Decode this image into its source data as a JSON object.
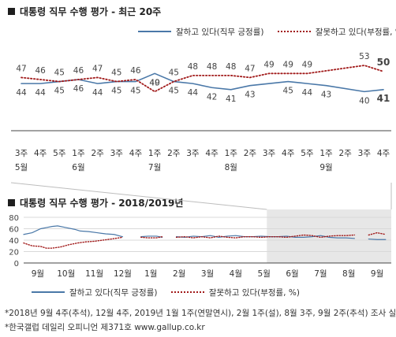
{
  "top": {
    "title": "대통령 직무 수행 평가 - 최근 20주",
    "legend": [
      {
        "label": "잘하고 있다(직무 긍정률)",
        "style": "solid",
        "color": "#4a78a8"
      },
      {
        "label": "잘못하고 있다(부정률, %)",
        "style": "dotted",
        "color": "#a11a1a"
      }
    ]
  },
  "bottom": {
    "title": "대통령 직무 수행 평가 - 2018/2019년",
    "legend": [
      {
        "label": "잘하고 있다(직무 긍정률)",
        "style": "solid",
        "color": "#4a78a8"
      },
      {
        "label": "잘못하고 있다(부정률, %)",
        "style": "dotted",
        "color": "#a11a1a"
      }
    ]
  },
  "footnotes": [
    "*2018년 9월 4주(추석), 12월 4주, 2019년 1월 1주(연말연시), 2월 1주(설), 8월 3주, 9월 2주(추석) 조사 실",
    "*한국갤럽 데일리 오피니언 제371호 www.gallup.co.kr"
  ],
  "chart_data": [
    {
      "type": "line",
      "title": "대통령 직무 수행 평가 - 최근 20주",
      "x_week_labels": [
        "3주",
        "4주",
        "5주",
        "1주",
        "2주",
        "3주",
        "4주",
        "1주",
        "2주",
        "3주",
        "4주",
        "1주",
        "2주",
        "3주",
        "4주",
        "5주",
        "1주",
        "2주",
        "3주",
        "4주"
      ],
      "x_month_labels": [
        {
          "label": "5월",
          "index": 0
        },
        {
          "label": "6월",
          "index": 3
        },
        {
          "label": "7월",
          "index": 7
        },
        {
          "label": "8월",
          "index": 11
        },
        {
          "label": "9월",
          "index": 16
        }
      ],
      "series": [
        {
          "name": "잘하고 있다(직무 긍정률)",
          "color": "#4a78a8",
          "style": "solid",
          "values": [
            44,
            44,
            45,
            46,
            44,
            45,
            45,
            49,
            45,
            44,
            42,
            41,
            43,
            null,
            45,
            44,
            43,
            null,
            40,
            41
          ]
        },
        {
          "name": "잘못하고 있다(부정률, %)",
          "color": "#a11a1a",
          "style": "dotted",
          "values": [
            47,
            46,
            45,
            46,
            47,
            45,
            46,
            40,
            45,
            48,
            48,
            48,
            47,
            49,
            49,
            49,
            null,
            null,
            53,
            50
          ]
        }
      ],
      "ylim": [
        30,
        62
      ]
    },
    {
      "type": "line",
      "title": "대통령 직무 수행 평가 - 2018/2019년",
      "ylim": [
        0,
        80
      ],
      "yticks": [
        0,
        20,
        40,
        60,
        80
      ],
      "x_month_labels": [
        "9월",
        "10월",
        "11월",
        "12월",
        "1월",
        "2월",
        "3월",
        "4월",
        "5월",
        "6월",
        "7월",
        "8월",
        "9월"
      ],
      "x_range": [
        0,
        13
      ],
      "highlight_range": [
        8.6,
        13
      ],
      "series": [
        {
          "name": "잘하고 있다(직무 긍정률)",
          "color": "#4a78a8",
          "style": "solid",
          "segments": [
            [
              [
                0.0,
                50
              ],
              [
                0.3,
                53
              ],
              [
                0.6,
                60
              ],
              [
                0.8,
                62
              ],
              [
                1.0,
                64
              ],
              [
                1.2,
                65
              ],
              [
                1.5,
                62
              ],
              [
                1.8,
                59
              ],
              [
                2.0,
                56
              ],
              [
                2.3,
                55
              ],
              [
                2.6,
                53
              ],
              [
                2.9,
                51
              ],
              [
                3.2,
                50
              ],
              [
                3.5,
                46
              ]
            ],
            [
              [
                4.15,
                46
              ],
              [
                4.4,
                47
              ],
              [
                4.7,
                47
              ],
              [
                4.9,
                45
              ]
            ],
            [
              [
                5.4,
                46
              ],
              [
                5.7,
                45
              ],
              [
                6.0,
                47
              ],
              [
                6.3,
                46
              ],
              [
                6.6,
                48
              ],
              [
                6.9,
                45
              ],
              [
                7.2,
                47
              ],
              [
                7.5,
                48
              ],
              [
                7.8,
                46
              ],
              [
                8.1,
                46
              ],
              [
                8.4,
                47
              ],
              [
                8.7,
                46
              ],
              [
                9.0,
                46
              ],
              [
                9.3,
                47
              ],
              [
                9.6,
                45
              ],
              [
                9.9,
                45
              ],
              [
                10.2,
                46
              ],
              [
                10.5,
                48
              ],
              [
                10.8,
                45
              ],
              [
                11.1,
                44
              ],
              [
                11.4,
                44
              ],
              [
                11.7,
                43
              ]
            ],
            [
              [
                12.2,
                42
              ],
              [
                12.5,
                41
              ],
              [
                12.8,
                41
              ]
            ]
          ]
        },
        {
          "name": "잘못하고 있다(부정률, %)",
          "color": "#a11a1a",
          "style": "dotted",
          "segments": [
            [
              [
                0.0,
                35
              ],
              [
                0.3,
                30
              ],
              [
                0.6,
                29
              ],
              [
                0.8,
                26
              ],
              [
                1.0,
                26
              ],
              [
                1.3,
                28
              ],
              [
                1.6,
                32
              ],
              [
                1.9,
                35
              ],
              [
                2.2,
                37
              ],
              [
                2.5,
                38
              ],
              [
                2.8,
                40
              ],
              [
                3.1,
                42
              ],
              [
                3.5,
                45
              ]
            ],
            [
              [
                4.15,
                45
              ],
              [
                4.4,
                44
              ],
              [
                4.7,
                44
              ],
              [
                4.9,
                46
              ]
            ],
            [
              [
                5.4,
                45
              ],
              [
                5.7,
                46
              ],
              [
                6.0,
                44
              ],
              [
                6.3,
                46
              ],
              [
                6.6,
                44
              ],
              [
                6.9,
                47
              ],
              [
                7.2,
                45
              ],
              [
                7.5,
                44
              ],
              [
                7.8,
                46
              ],
              [
                8.1,
                46
              ],
              [
                8.4,
                45
              ],
              [
                8.7,
                46
              ],
              [
                9.0,
                46
              ],
              [
                9.3,
                45
              ],
              [
                9.6,
                47
              ],
              [
                9.9,
                49
              ],
              [
                10.2,
                48
              ],
              [
                10.5,
                45
              ],
              [
                10.8,
                47
              ],
              [
                11.1,
                48
              ],
              [
                11.4,
                48
              ],
              [
                11.7,
                49
              ]
            ],
            [
              [
                12.2,
                49
              ],
              [
                12.5,
                53
              ],
              [
                12.8,
                50
              ]
            ]
          ]
        }
      ]
    }
  ]
}
